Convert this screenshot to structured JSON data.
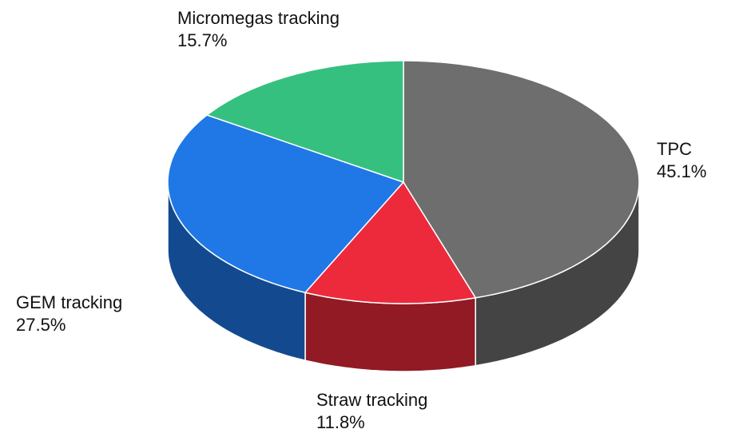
{
  "chart_data": {
    "type": "pie3d",
    "categories": [
      "TPC",
      "Straw tracking",
      "GEM tracking",
      "Micromegas tracking"
    ],
    "values": [
      45.1,
      11.8,
      27.5,
      15.7
    ],
    "value_labels": [
      "45.1%",
      "11.8%",
      "27.5%",
      "15.7%"
    ],
    "colors": [
      "#6e6e6e",
      "#ec2a3c",
      "#1f78e6",
      "#36c07f"
    ]
  }
}
